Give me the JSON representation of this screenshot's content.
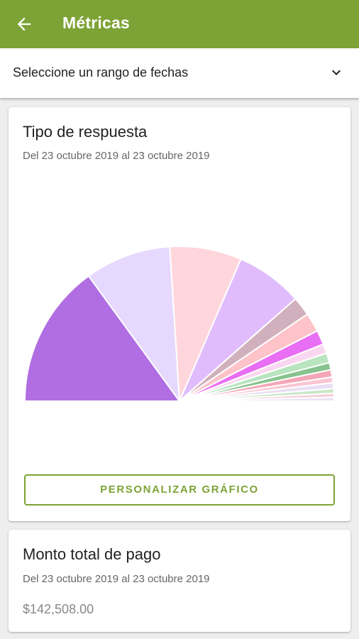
{
  "appbar": {
    "title": "Métricas",
    "back_icon": "arrow-left-icon",
    "color": "#7da336"
  },
  "date_range": {
    "label": "Seleccione un rango de fechas",
    "icon": "chevron-down-icon"
  },
  "response_card": {
    "title": "Tipo de respuesta",
    "subtitle": "Del 23 octubre 2019 al 23 octubre 2019",
    "button_label": "PERSONALIZAR GRÁFICO"
  },
  "payment_card": {
    "title": "Monto total de pago",
    "subtitle": "Del 23 octubre 2019 al 23 octubre 2019",
    "amount": "$142,508.00"
  },
  "chart_data": {
    "type": "pie",
    "shape": "half-pie",
    "title": "",
    "legend": "none",
    "values": [
      30,
      18,
      15,
      14,
      4,
      4,
      3,
      2,
      2,
      1.5,
      1.5,
      1.2,
      1.2,
      1,
      0.8,
      0.8
    ],
    "colors": [
      "#b06ee2",
      "#e6d8fe",
      "#ffd6dc",
      "#e0bcfd",
      "#d1b0bd",
      "#fdc3c8",
      "#e86ef3",
      "#fad7f1",
      "#b8e4bf",
      "#87c38e",
      "#f4a7b7",
      "#f9c6d2",
      "#e9dff4",
      "#c9e7c9",
      "#f6ccd4",
      "#ece2f5"
    ]
  }
}
